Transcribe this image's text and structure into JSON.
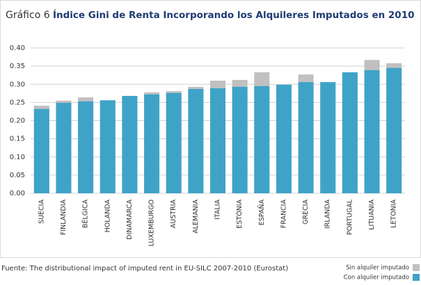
{
  "chart_data": {
    "type": "bar",
    "title_prefix": "Gráfico 6",
    "title": "Índice Gini de Renta Incorporando los Alquileres Imputados en 2010",
    "source": "Fuente: The distributional impact of imputed rent in EU-SILC 2007-2010 (Eurostat)",
    "categories": [
      "SUECIA",
      "FINLANDIA",
      "BÉLGICA",
      "HOLANDA",
      "DINAMARCA",
      "LUXEMBURGO",
      "AUSTRIA",
      "ALEMANIA",
      "ITALIA",
      "ESTONIA",
      "ESPAÑA",
      "FRANCIA",
      "GRECIA",
      "IRLANDA",
      "PORTUGAL",
      "LITUANIA",
      "LETONIA"
    ],
    "series": [
      {
        "name": "Sin alquiler imputado",
        "color": "#c0c0c0",
        "values": [
          0.241,
          0.255,
          0.264,
          0.255,
          0.267,
          0.278,
          0.281,
          0.293,
          0.31,
          0.312,
          0.333,
          0.298,
          0.327,
          0.305,
          0.332,
          0.367,
          0.358
        ]
      },
      {
        "name": "Con alquiler imputado",
        "color": "#3fa3c8",
        "values": [
          0.232,
          0.249,
          0.253,
          0.256,
          0.268,
          0.272,
          0.276,
          0.287,
          0.289,
          0.293,
          0.295,
          0.299,
          0.306,
          0.306,
          0.333,
          0.339,
          0.345
        ]
      }
    ],
    "ylim": [
      0,
      0.4
    ],
    "yticks": [
      {
        "value": 0,
        "label": "0.00"
      },
      {
        "value": 0.05,
        "label": "0.05"
      },
      {
        "value": 0.1,
        "label": "0.10"
      },
      {
        "value": 0.15,
        "label": "0.15"
      },
      {
        "value": 0.2,
        "label": "0.20"
      },
      {
        "value": 0.25,
        "label": "0.25"
      },
      {
        "value": 0.3,
        "label": "0.30"
      },
      {
        "value": 0.35,
        "label": "0.35"
      },
      {
        "value": 0.4,
        "label": "0.40"
      }
    ],
    "grid": true
  }
}
